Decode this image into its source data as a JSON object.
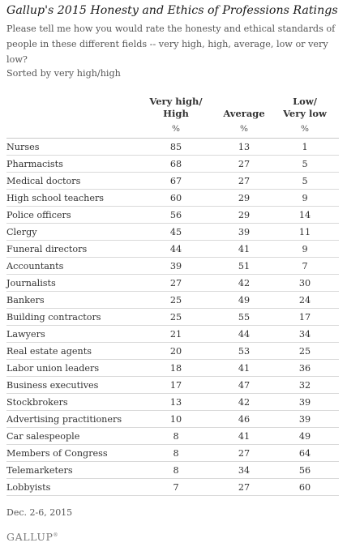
{
  "chart_data": {
    "type": "table",
    "title": "Gallup's 2015 Honesty and Ethics of Professions Ratings",
    "subtitle": "Please tell me how you would rate the honesty and ethical standards of people in these different fields -- very high, high, average, low or very low?",
    "sort_note": "Sorted by very high/high",
    "columns": [
      {
        "line1": "Very high/",
        "line2": "High",
        "unit": "%"
      },
      {
        "line1": "",
        "line2": "Average",
        "unit": "%"
      },
      {
        "line1": "Low/",
        "line2": "Very low",
        "unit": "%"
      }
    ],
    "rows": [
      {
        "label": "Nurses",
        "values": [
          85,
          13,
          1
        ]
      },
      {
        "label": "Pharmacists",
        "values": [
          68,
          27,
          5
        ]
      },
      {
        "label": "Medical doctors",
        "values": [
          67,
          27,
          5
        ]
      },
      {
        "label": "High school teachers",
        "values": [
          60,
          29,
          9
        ]
      },
      {
        "label": "Police officers",
        "values": [
          56,
          29,
          14
        ]
      },
      {
        "label": "Clergy",
        "values": [
          45,
          39,
          11
        ]
      },
      {
        "label": "Funeral directors",
        "values": [
          44,
          41,
          9
        ]
      },
      {
        "label": "Accountants",
        "values": [
          39,
          51,
          7
        ]
      },
      {
        "label": "Journalists",
        "values": [
          27,
          42,
          30
        ]
      },
      {
        "label": "Bankers",
        "values": [
          25,
          49,
          24
        ]
      },
      {
        "label": "Building contractors",
        "values": [
          25,
          55,
          17
        ]
      },
      {
        "label": "Lawyers",
        "values": [
          21,
          44,
          34
        ]
      },
      {
        "label": "Real estate agents",
        "values": [
          20,
          53,
          25
        ]
      },
      {
        "label": "Labor union leaders",
        "values": [
          18,
          41,
          36
        ]
      },
      {
        "label": "Business executives",
        "values": [
          17,
          47,
          32
        ]
      },
      {
        "label": "Stockbrokers",
        "values": [
          13,
          42,
          39
        ]
      },
      {
        "label": "Advertising practitioners",
        "values": [
          10,
          46,
          39
        ]
      },
      {
        "label": "Car salespeople",
        "values": [
          8,
          41,
          49
        ]
      },
      {
        "label": "Members of Congress",
        "values": [
          8,
          27,
          64
        ]
      },
      {
        "label": "Telemarketers",
        "values": [
          8,
          34,
          56
        ]
      },
      {
        "label": "Lobbyists",
        "values": [
          7,
          27,
          60
        ]
      }
    ],
    "date_note": "Dec. 2-6, 2015",
    "brand": "GALLUP",
    "brand_mark": "®"
  }
}
